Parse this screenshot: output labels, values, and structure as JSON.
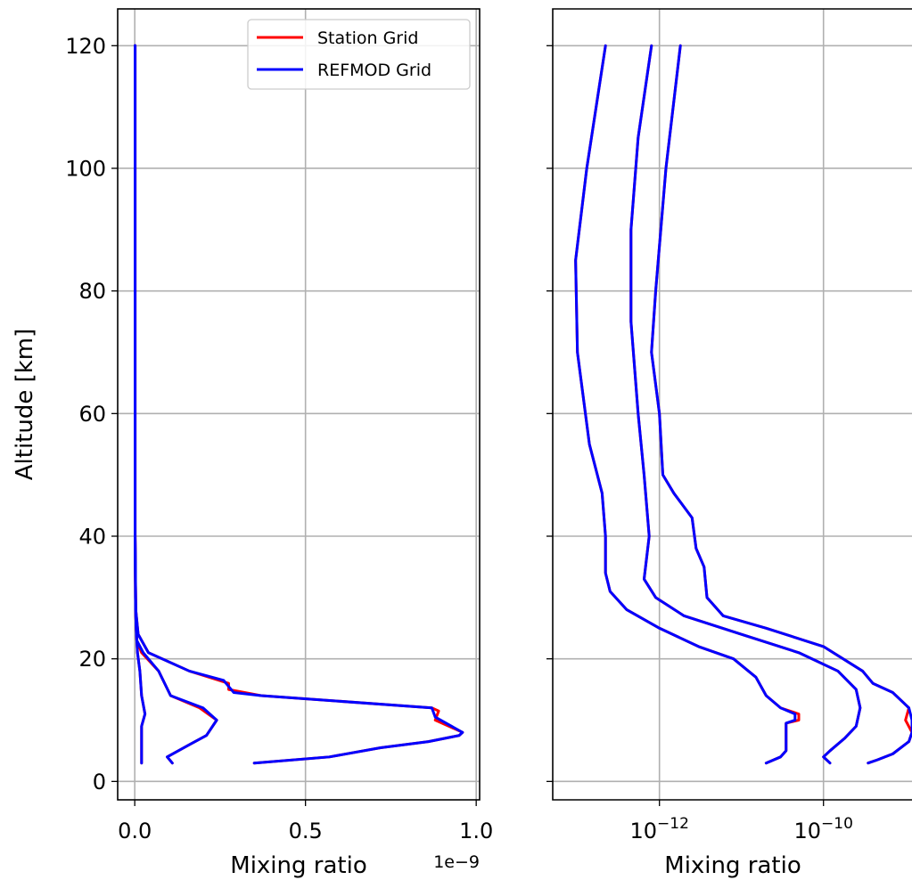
{
  "chart_data": [
    {
      "type": "line",
      "panel": "left",
      "xlabel": "Mixing ratio",
      "ylabel": "Altitude [km]",
      "xscale": "linear",
      "x_offset_text": "1e−9",
      "xlim": [
        -5e-11,
        1.01e-09
      ],
      "ylim": [
        -3,
        126
      ],
      "xticks": [
        0.0,
        5e-10,
        1e-09
      ],
      "xtick_labels": [
        "0.0",
        "0.5",
        "1.0"
      ],
      "yticks": [
        0,
        20,
        40,
        60,
        80,
        100,
        120
      ],
      "ytick_labels": [
        "0",
        "20",
        "40",
        "60",
        "80",
        "100",
        "120"
      ],
      "grid": true,
      "legend": {
        "placement": "top-right",
        "entries": [
          {
            "label": "Station Grid",
            "color": "#ff0000"
          },
          {
            "label": "REFMOD Grid",
            "color": "#0000ff"
          }
        ]
      },
      "series": [
        {
          "legend": "Station Grid",
          "color": "#ff0000",
          "points": [
            [
              2e-11,
              3
            ],
            [
              2e-11,
              6
            ],
            [
              2e-11,
              9
            ],
            [
              3e-11,
              11
            ],
            [
              2e-11,
              14
            ],
            [
              1.5e-11,
              18
            ],
            [
              8e-12,
              21
            ],
            [
              4e-12,
              25
            ],
            [
              2e-12,
              30
            ],
            [
              1e-12,
              40
            ],
            [
              1e-12,
              60
            ],
            [
              1e-12,
              80
            ],
            [
              1e-12,
              100
            ],
            [
              1e-12,
              120
            ]
          ]
        },
        {
          "legend": "Station Grid",
          "color": "#ff0000",
          "points": [
            [
              1.1e-10,
              3
            ],
            [
              9.5e-11,
              4
            ],
            [
              1.6e-10,
              6
            ],
            [
              2.1e-10,
              7.5
            ],
            [
              2.4e-10,
              10
            ],
            [
              1.9e-10,
              12
            ],
            [
              1.05e-10,
              14
            ],
            [
              7e-11,
              18
            ],
            [
              2e-11,
              21
            ],
            [
              6e-12,
              23
            ],
            [
              3e-12,
              27
            ],
            [
              1e-12,
              40
            ],
            [
              1e-12,
              60
            ],
            [
              1e-12,
              80
            ],
            [
              1e-12,
              100
            ],
            [
              1e-12,
              120
            ]
          ]
        },
        {
          "legend": "Station Grid",
          "color": "#ff0000",
          "points": [
            [
              3.5e-10,
              3
            ],
            [
              5.7e-10,
              4
            ],
            [
              7.2e-10,
              5.5
            ],
            [
              8.6e-10,
              6.5
            ],
            [
              9.5e-10,
              7.5
            ],
            [
              9.6e-10,
              8
            ],
            [
              8.8e-10,
              10
            ],
            [
              8.9e-10,
              11.5
            ],
            [
              8.7e-10,
              12
            ],
            [
              3.7e-10,
              14
            ],
            [
              2.75e-10,
              15
            ],
            [
              2.75e-10,
              16
            ],
            [
              1.6e-10,
              18
            ],
            [
              4e-11,
              21
            ],
            [
              1e-11,
              24
            ],
            [
              3e-12,
              28
            ],
            [
              1e-12,
              40
            ],
            [
              1e-12,
              60
            ],
            [
              1e-12,
              80
            ],
            [
              1e-12,
              100
            ],
            [
              1e-12,
              120
            ]
          ]
        },
        {
          "legend": "REFMOD Grid",
          "color": "#0000ff",
          "points": [
            [
              2e-11,
              3
            ],
            [
              2e-11,
              6
            ],
            [
              2e-11,
              9
            ],
            [
              3e-11,
              11
            ],
            [
              2e-11,
              14
            ],
            [
              1.5e-11,
              18
            ],
            [
              8e-12,
              21
            ],
            [
              4e-12,
              25
            ],
            [
              2e-12,
              30
            ],
            [
              1e-12,
              40
            ],
            [
              1e-12,
              60
            ],
            [
              1e-12,
              80
            ],
            [
              1e-12,
              100
            ],
            [
              1e-12,
              120
            ]
          ]
        },
        {
          "legend": "REFMOD Grid",
          "color": "#0000ff",
          "points": [
            [
              1.1e-10,
              3
            ],
            [
              9.5e-11,
              4
            ],
            [
              1.6e-10,
              6
            ],
            [
              2.1e-10,
              7.5
            ],
            [
              2.4e-10,
              10
            ],
            [
              2e-10,
              12
            ],
            [
              1.05e-10,
              14
            ],
            [
              7e-11,
              18
            ],
            [
              2.5e-11,
              21
            ],
            [
              6e-12,
              23
            ],
            [
              3e-12,
              27
            ],
            [
              1e-12,
              40
            ],
            [
              1e-12,
              60
            ],
            [
              1e-12,
              80
            ],
            [
              1e-12,
              100
            ],
            [
              1e-12,
              120
            ]
          ]
        },
        {
          "legend": "REFMOD Grid",
          "color": "#0000ff",
          "points": [
            [
              3.5e-10,
              3
            ],
            [
              5.7e-10,
              4
            ],
            [
              7.2e-10,
              5.5
            ],
            [
              8.6e-10,
              6.5
            ],
            [
              9.5e-10,
              7.5
            ],
            [
              9.6e-10,
              8
            ],
            [
              8.8e-10,
              10.5
            ],
            [
              8.7e-10,
              12
            ],
            [
              3.7e-10,
              14
            ],
            [
              2.9e-10,
              14.5
            ],
            [
              2.6e-10,
              16.5
            ],
            [
              1.6e-10,
              18
            ],
            [
              4e-11,
              21
            ],
            [
              1e-11,
              24
            ],
            [
              3e-12,
              28
            ],
            [
              1e-12,
              40
            ],
            [
              1e-12,
              60
            ],
            [
              1e-12,
              80
            ],
            [
              1e-12,
              100
            ],
            [
              1e-12,
              120
            ]
          ]
        }
      ]
    },
    {
      "type": "line",
      "panel": "right",
      "xlabel": "Mixing ratio",
      "ylabel": "",
      "xscale": "log",
      "xlim": [
        5e-14,
        1.2e-09
      ],
      "ylim": [
        -3,
        126
      ],
      "xticks": [
        1e-12,
        1e-10
      ],
      "xtick_labels": [
        {
          "base": "10",
          "exp": "−12"
        },
        {
          "base": "10",
          "exp": "−10"
        }
      ],
      "yticks": [
        0,
        20,
        40,
        60,
        80,
        100,
        120
      ],
      "ytick_labels": [],
      "grid": true,
      "series": [
        {
          "legend": "Station Grid",
          "color": "#ff0000",
          "points": [
            [
              2.2e-13,
              120
            ],
            [
              1.3e-13,
              100
            ],
            [
              9.5e-14,
              85
            ],
            [
              1e-13,
              70
            ],
            [
              1.4e-13,
              55
            ],
            [
              2e-13,
              47
            ],
            [
              2.2e-13,
              40
            ],
            [
              2.2e-13,
              34
            ],
            [
              2.5e-13,
              31
            ],
            [
              4e-13,
              28
            ],
            [
              1e-12,
              25
            ],
            [
              3e-12,
              22
            ],
            [
              8e-12,
              20
            ],
            [
              1.5e-11,
              17
            ],
            [
              2e-11,
              14
            ],
            [
              3e-11,
              12
            ],
            [
              5e-11,
              11
            ],
            [
              5e-11,
              10
            ],
            [
              3.5e-11,
              9.5
            ],
            [
              3.5e-11,
              8
            ],
            [
              3.5e-11,
              6
            ],
            [
              3.5e-11,
              5
            ],
            [
              3e-11,
              4
            ],
            [
              2e-11,
              3
            ]
          ]
        },
        {
          "legend": "Station Grid",
          "color": "#ff0000",
          "points": [
            [
              8e-13,
              120
            ],
            [
              5.5e-13,
              105
            ],
            [
              4.5e-13,
              90
            ],
            [
              4.5e-13,
              75
            ],
            [
              5.5e-13,
              60
            ],
            [
              6.5e-13,
              50
            ],
            [
              7.5e-13,
              40
            ],
            [
              6.5e-13,
              33
            ],
            [
              9e-13,
              30
            ],
            [
              2e-12,
              27
            ],
            [
              1e-11,
              24
            ],
            [
              5e-11,
              21
            ],
            [
              1.5e-10,
              18
            ],
            [
              2.5e-10,
              15
            ],
            [
              2.8e-10,
              12
            ],
            [
              2.5e-10,
              9
            ],
            [
              1.8e-10,
              7
            ],
            [
              1.2e-10,
              5
            ],
            [
              1e-10,
              4
            ],
            [
              1.2e-10,
              3
            ]
          ]
        },
        {
          "legend": "Station Grid",
          "color": "#ff0000",
          "points": [
            [
              1.8e-12,
              120
            ],
            [
              1.2e-12,
              100
            ],
            [
              9e-13,
              80
            ],
            [
              8e-13,
              70
            ],
            [
              1e-12,
              60
            ],
            [
              1.1e-12,
              50
            ],
            [
              1.5e-12,
              47
            ],
            [
              2.5e-12,
              43
            ],
            [
              2.8e-12,
              38
            ],
            [
              3.5e-12,
              35
            ],
            [
              3.8e-12,
              30
            ],
            [
              6e-12,
              27
            ],
            [
              2e-11,
              25
            ],
            [
              1e-10,
              22
            ],
            [
              3e-10,
              18
            ],
            [
              4e-10,
              16
            ],
            [
              7e-10,
              14.5
            ],
            [
              1.1e-09,
              12
            ],
            [
              1e-09,
              10
            ],
            [
              1.2e-09,
              8
            ],
            [
              1.1e-09,
              6.5
            ],
            [
              7e-10,
              4.5
            ],
            [
              4.5e-10,
              3.5
            ],
            [
              3.5e-10,
              3
            ]
          ]
        },
        {
          "legend": "REFMOD Grid",
          "color": "#0000ff",
          "points": [
            [
              2.2e-13,
              120
            ],
            [
              1.3e-13,
              100
            ],
            [
              9.5e-14,
              85
            ],
            [
              1e-13,
              70
            ],
            [
              1.4e-13,
              55
            ],
            [
              2e-13,
              47
            ],
            [
              2.2e-13,
              40
            ],
            [
              2.2e-13,
              34
            ],
            [
              2.5e-13,
              31
            ],
            [
              4e-13,
              28
            ],
            [
              1e-12,
              25
            ],
            [
              3e-12,
              22
            ],
            [
              8e-12,
              20
            ],
            [
              1.5e-11,
              17
            ],
            [
              2e-11,
              14
            ],
            [
              3e-11,
              12
            ],
            [
              4.5e-11,
              11
            ],
            [
              4.5e-11,
              10
            ],
            [
              3.5e-11,
              9.5
            ],
            [
              3.5e-11,
              8
            ],
            [
              3.5e-11,
              6
            ],
            [
              3.5e-11,
              5
            ],
            [
              3e-11,
              4
            ],
            [
              2e-11,
              3
            ]
          ]
        },
        {
          "legend": "REFMOD Grid",
          "color": "#0000ff",
          "points": [
            [
              8e-13,
              120
            ],
            [
              5.5e-13,
              105
            ],
            [
              4.5e-13,
              90
            ],
            [
              4.5e-13,
              75
            ],
            [
              5.5e-13,
              60
            ],
            [
              6.5e-13,
              50
            ],
            [
              7.5e-13,
              40
            ],
            [
              6.5e-13,
              33
            ],
            [
              9e-13,
              30
            ],
            [
              2e-12,
              27
            ],
            [
              1e-11,
              24
            ],
            [
              5e-11,
              21
            ],
            [
              1.5e-10,
              18
            ],
            [
              2.5e-10,
              15
            ],
            [
              2.8e-10,
              12
            ],
            [
              2.5e-10,
              9
            ],
            [
              1.8e-10,
              7
            ],
            [
              1.2e-10,
              5
            ],
            [
              1e-10,
              4
            ],
            [
              1.2e-10,
              3
            ]
          ]
        },
        {
          "legend": "REFMOD Grid",
          "color": "#0000ff",
          "points": [
            [
              1.8e-12,
              120
            ],
            [
              1.2e-12,
              100
            ],
            [
              9e-13,
              80
            ],
            [
              8e-13,
              70
            ],
            [
              1e-12,
              60
            ],
            [
              1.1e-12,
              50
            ],
            [
              1.5e-12,
              47
            ],
            [
              2.5e-12,
              43
            ],
            [
              2.8e-12,
              38
            ],
            [
              3.5e-12,
              35
            ],
            [
              3.8e-12,
              30
            ],
            [
              6e-12,
              27
            ],
            [
              2e-11,
              25
            ],
            [
              1e-10,
              22
            ],
            [
              3e-10,
              18
            ],
            [
              4e-10,
              16
            ],
            [
              7e-10,
              14.5
            ],
            [
              1.1e-09,
              12
            ],
            [
              1.2e-09,
              10
            ],
            [
              1.2e-09,
              8
            ],
            [
              1.1e-09,
              6.5
            ],
            [
              7e-10,
              4.5
            ],
            [
              4.5e-10,
              3.5
            ],
            [
              3.5e-10,
              3
            ]
          ]
        }
      ]
    }
  ]
}
